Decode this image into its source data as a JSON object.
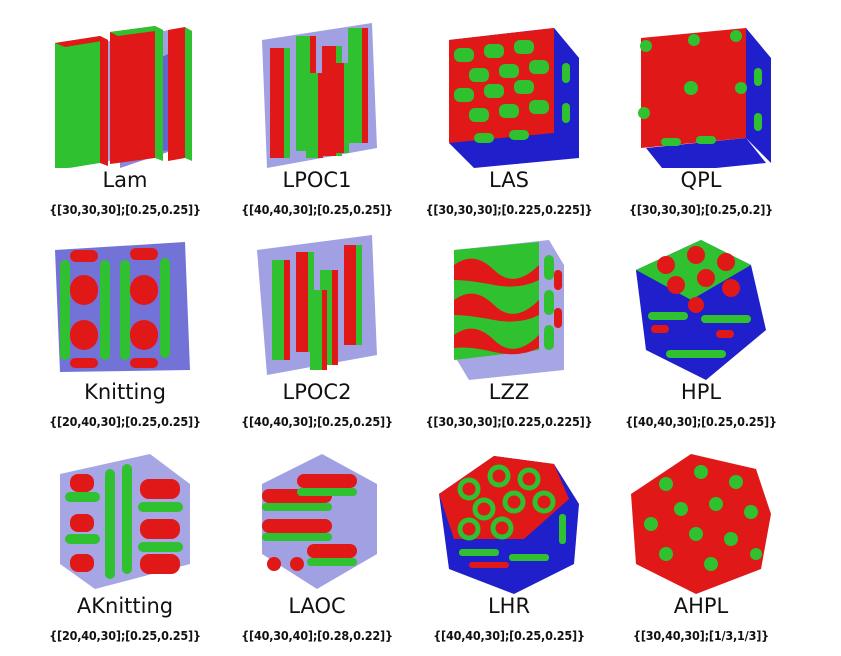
{
  "colors": {
    "red": "#e01818",
    "green": "#2fc12f",
    "blue": "#1f1fcc",
    "translucent_blue": "#8080d8"
  },
  "structures": [
    {
      "name": "Lam",
      "params": "{[30,30,30];[0.25,0.25]}",
      "icon": "lamellar-icon"
    },
    {
      "name": "LPOC1",
      "params": "{[40,40,30];[0.25,0.25]}",
      "icon": "lamellar-perforated-cylinder-icon"
    },
    {
      "name": "LAS",
      "params": "{[30,30,30];[0.225,0.225]}",
      "icon": "lamellar-alternating-sphere-icon"
    },
    {
      "name": "QPL",
      "params": "{[30,30,30];[0.25,0.2]}",
      "icon": "quadrangle-perforated-lamellar-icon"
    },
    {
      "name": "Knitting",
      "params": "{[20,40,30];[0.25,0.25]}",
      "icon": "knitting-icon"
    },
    {
      "name": "LPOC2",
      "params": "{[40,40,30];[0.25,0.25]}",
      "icon": "lamellar-perforated-cylinder-2-icon"
    },
    {
      "name": "LZZ",
      "params": "{[30,30,30];[0.225,0.225]}",
      "icon": "lamellar-zigzag-icon"
    },
    {
      "name": "HPL",
      "params": "{[40,40,30];[0.25,0.25]}",
      "icon": "hexagonal-perforated-lamellar-icon"
    },
    {
      "name": "AKnitting",
      "params": "{[20,40,30];[0.25,0.25]}",
      "icon": "alternating-knitting-icon"
    },
    {
      "name": "LAOC",
      "params": "{[40,30,40];[0.28,0.22]}",
      "icon": "lamellar-alternating-cylinder-icon"
    },
    {
      "name": "LHR",
      "params": "{[40,40,30];[0.25,0.25]}",
      "icon": "lamellar-hexagonal-ring-icon"
    },
    {
      "name": "AHPL",
      "params": "{[30,40,30];[1/3,1/3]}",
      "icon": "alternating-hexagonal-perforated-lamellar-icon"
    }
  ]
}
